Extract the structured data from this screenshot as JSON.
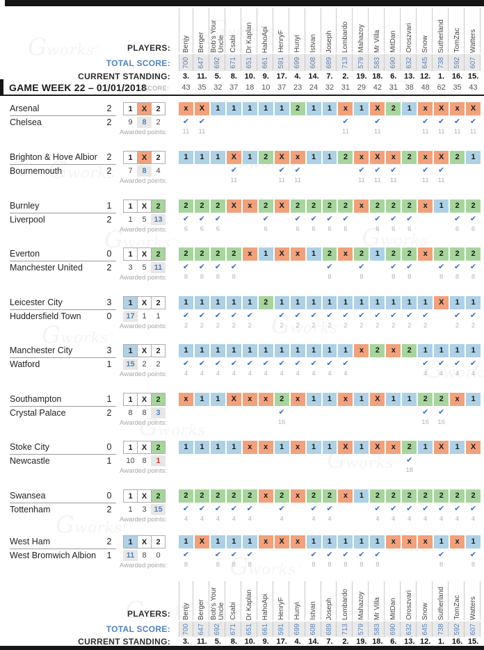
{
  "labels": {
    "players": "PLAYERS:",
    "total_score": "TOTAL SCORE:",
    "current_standing": "CURRENT STANDING:",
    "game_week": "GAME WEEK 22 – 01/01/2018",
    "score": "SCORE:",
    "awarded_points": "Awarded points:",
    "check": "✔",
    "outcomes": [
      "1",
      "X",
      "2"
    ],
    "watermark_g": "G",
    "watermark_word": "works",
    "watermark_tm": "™"
  },
  "colors": {
    "one": "#aed1e6",
    "draw": "#f1a17c",
    "two": "#a8d59e",
    "accent_blue": "#4f81bd",
    "check_blue": "#3a6bc4",
    "count_red": "#c03a2b",
    "count_bg": "#e7e7e7",
    "totals_bg": "#e9e9e9"
  },
  "players": [
    {
      "name": "Benjy",
      "total": "700",
      "standing": "3.",
      "week_score": "43"
    },
    {
      "name": "Berger",
      "total": "647",
      "standing": "11.",
      "week_score": "35"
    },
    {
      "name": "Bob's Your Uncle",
      "total": "692",
      "standing": "5.",
      "week_score": "32"
    },
    {
      "name": "Csabi",
      "total": "671",
      "standing": "8.",
      "week_score": "37"
    },
    {
      "name": "Dr Kaplan",
      "total": "651",
      "standing": "10.",
      "week_score": "18"
    },
    {
      "name": "HahoApi",
      "total": "661",
      "standing": "9.",
      "week_score": "10"
    },
    {
      "name": "HenryF",
      "total": "591",
      "standing": "17.",
      "week_score": "37"
    },
    {
      "name": "Hunyi",
      "total": "699",
      "standing": "4.",
      "week_score": "23"
    },
    {
      "name": "Istvan",
      "total": "608",
      "standing": "14.",
      "week_score": "24"
    },
    {
      "name": "Joseph",
      "total": "689",
      "standing": "7.",
      "week_score": "32"
    },
    {
      "name": "Lombardo",
      "total": "713",
      "standing": "2.",
      "week_score": "31"
    },
    {
      "name": "Mahazoy",
      "total": "579",
      "standing": "19.",
      "week_score": "29"
    },
    {
      "name": "Mr Villa",
      "total": "583",
      "standing": "18.",
      "week_score": "42"
    },
    {
      "name": "MitDan",
      "total": "690",
      "standing": "6.",
      "week_score": "31"
    },
    {
      "name": "Oroszvari",
      "total": "632",
      "standing": "13.",
      "week_score": "38"
    },
    {
      "name": "Snow",
      "total": "645",
      "standing": "12.",
      "week_score": "48"
    },
    {
      "name": "Sutherland",
      "total": "738",
      "standing": "1.",
      "week_score": "62"
    },
    {
      "name": "TomZac",
      "total": "592",
      "standing": "16.",
      "week_score": "35"
    },
    {
      "name": "Watters",
      "total": "607",
      "standing": "15.",
      "week_score": "43"
    }
  ],
  "matches": [
    {
      "home": "Arsenal",
      "home_score": "2",
      "away": "Chelsea",
      "away_score": "2",
      "result": "X",
      "counts": [
        "9",
        "8",
        "2"
      ],
      "count_style": "blue",
      "predictions": [
        "x",
        "X",
        "1",
        "1",
        "1",
        "1",
        "1",
        "2",
        "1",
        "1",
        "x",
        "1",
        "X",
        "2",
        "1",
        "x",
        "X",
        "x",
        "X"
      ],
      "points": [
        "11",
        "11",
        "",
        "",
        "",
        "",
        "",
        "",
        "",
        "",
        "11",
        "",
        "11",
        "",
        "",
        "11",
        "11",
        "11",
        "11"
      ]
    },
    {
      "home": "Brighton & Hove Albior",
      "home_score": "2",
      "away": "Bournemouth",
      "away_score": "2",
      "result": "X",
      "counts": [
        "7",
        "8",
        "4"
      ],
      "count_style": "blue",
      "predictions": [
        "1",
        "1",
        "1",
        "X",
        "1",
        "2",
        "X",
        "x",
        "1",
        "1",
        "2",
        "x",
        "X",
        "x",
        "2",
        "x",
        "X",
        "2",
        "1"
      ],
      "points": [
        "",
        "",
        "",
        "11",
        "",
        "",
        "11",
        "11",
        "",
        "",
        "",
        "11",
        "11",
        "11",
        "",
        "11",
        "11",
        "",
        ""
      ]
    },
    {
      "home": "Burnley",
      "home_score": "1",
      "away": "Liverpool",
      "away_score": "2",
      "result": "2",
      "counts": [
        "1",
        "5",
        "13"
      ],
      "count_style": "blue",
      "predictions": [
        "2",
        "2",
        "2",
        "X",
        "x",
        "2",
        "X",
        "2",
        "2",
        "2",
        "2",
        "x",
        "2",
        "2",
        "2",
        "x",
        "1",
        "2",
        "2"
      ],
      "points": [
        "6",
        "6",
        "6",
        "",
        "",
        "6",
        "",
        "6",
        "6",
        "6",
        "6",
        "",
        "6",
        "6",
        "6",
        "",
        "",
        "6",
        "6"
      ]
    },
    {
      "home": "Everton",
      "home_score": "0",
      "away": "Manchester United",
      "away_score": "2",
      "result": "2",
      "counts": [
        "3",
        "5",
        "11"
      ],
      "count_style": "blue",
      "predictions": [
        "2",
        "2",
        "2",
        "2",
        "x",
        "1",
        "X",
        "x",
        "1",
        "2",
        "x",
        "2",
        "1",
        "2",
        "2",
        "x",
        "2",
        "2",
        "2"
      ],
      "points": [
        "8",
        "8",
        "8",
        "8",
        "",
        "",
        "",
        "",
        "",
        "8",
        "",
        "8",
        "",
        "8",
        "8",
        "",
        "8",
        "8",
        "8"
      ]
    },
    {
      "home": "Leicester City",
      "home_score": "3",
      "away": "Huddersfield Town",
      "away_score": "0",
      "result": "1",
      "counts": [
        "17",
        "1",
        "1"
      ],
      "count_style": "blue",
      "predictions": [
        "1",
        "1",
        "1",
        "1",
        "1",
        "2",
        "1",
        "1",
        "1",
        "1",
        "1",
        "1",
        "1",
        "1",
        "1",
        "1",
        "X",
        "1",
        "1"
      ],
      "points": [
        "2",
        "2",
        "2",
        "2",
        "2",
        "",
        "2",
        "2",
        "2",
        "2",
        "2",
        "2",
        "2",
        "2",
        "2",
        "2",
        "",
        "2",
        "2"
      ]
    },
    {
      "home": "Manchester City",
      "home_score": "3",
      "away": "Watford",
      "away_score": "1",
      "result": "1",
      "counts": [
        "15",
        "2",
        "2"
      ],
      "count_style": "blue",
      "predictions": [
        "1",
        "1",
        "1",
        "1",
        "1",
        "1",
        "1",
        "1",
        "1",
        "1",
        "1",
        "x",
        "2",
        "x",
        "2",
        "1",
        "1",
        "1",
        "1"
      ],
      "points": [
        "4",
        "4",
        "4",
        "4",
        "4",
        "4",
        "4",
        "4",
        "4",
        "4",
        "4",
        "",
        "",
        "",
        "",
        "4",
        "4",
        "4",
        "4"
      ]
    },
    {
      "home": "Southampton",
      "home_score": "1",
      "away": "Crystal Palace",
      "away_score": "2",
      "result": "2",
      "counts": [
        "8",
        "8",
        "3"
      ],
      "count_style": "blue",
      "predictions": [
        "x",
        "1",
        "1",
        "X",
        "x",
        "x",
        "2",
        "x",
        "1",
        "1",
        "x",
        "1",
        "X",
        "1",
        "1",
        "2",
        "2",
        "x",
        "1"
      ],
      "points": [
        "",
        "",
        "",
        "",
        "",
        "",
        "16",
        "",
        "",
        "",
        "",
        "",
        "",
        "",
        "",
        "16",
        "16",
        "",
        ""
      ]
    },
    {
      "home": "Stoke City",
      "home_score": "0",
      "away": "Newcastle",
      "away_score": "1",
      "result": "2",
      "counts": [
        "10",
        "8",
        "1"
      ],
      "count_style": "red",
      "predictions": [
        "1",
        "1",
        "1",
        "1",
        "x",
        "x",
        "1",
        "x",
        "1",
        "1",
        "X",
        "1",
        "X",
        "x",
        "2",
        "1",
        "X",
        "1",
        "X"
      ],
      "points": [
        "",
        "",
        "",
        "",
        "",
        "",
        "",
        "",
        "",
        "",
        "",
        "",
        "",
        "",
        "18",
        "",
        "",
        "",
        ""
      ]
    },
    {
      "home": "Swansea",
      "home_score": "0",
      "away": "Tottenham",
      "away_score": "2",
      "result": "2",
      "counts": [
        "1",
        "3",
        "15"
      ],
      "count_style": "blue",
      "predictions": [
        "2",
        "2",
        "2",
        "2",
        "2",
        "x",
        "2",
        "x",
        "2",
        "2",
        "x",
        "1",
        "2",
        "2",
        "2",
        "2",
        "2",
        "2",
        "2"
      ],
      "points": [
        "4",
        "4",
        "4",
        "4",
        "4",
        "",
        "4",
        "",
        "4",
        "4",
        "",
        "",
        "4",
        "4",
        "4",
        "4",
        "4",
        "4",
        "4"
      ]
    },
    {
      "home": "West Ham",
      "home_score": "2",
      "away": "West Bromwich Albion",
      "away_score": "1",
      "result": "1",
      "counts": [
        "11",
        "8",
        "0"
      ],
      "count_style": "blue",
      "predictions": [
        "1",
        "X",
        "1",
        "1",
        "1",
        "x",
        "X",
        "x",
        "1",
        "1",
        "1",
        "1",
        "1",
        "x",
        "x",
        "x",
        "1",
        "x",
        "1"
      ],
      "points": [
        "8",
        "",
        "8",
        "8",
        "8",
        "",
        "",
        "",
        "8",
        "8",
        "8",
        "8",
        "8",
        "",
        "",
        "",
        "8",
        "",
        "8"
      ]
    }
  ]
}
